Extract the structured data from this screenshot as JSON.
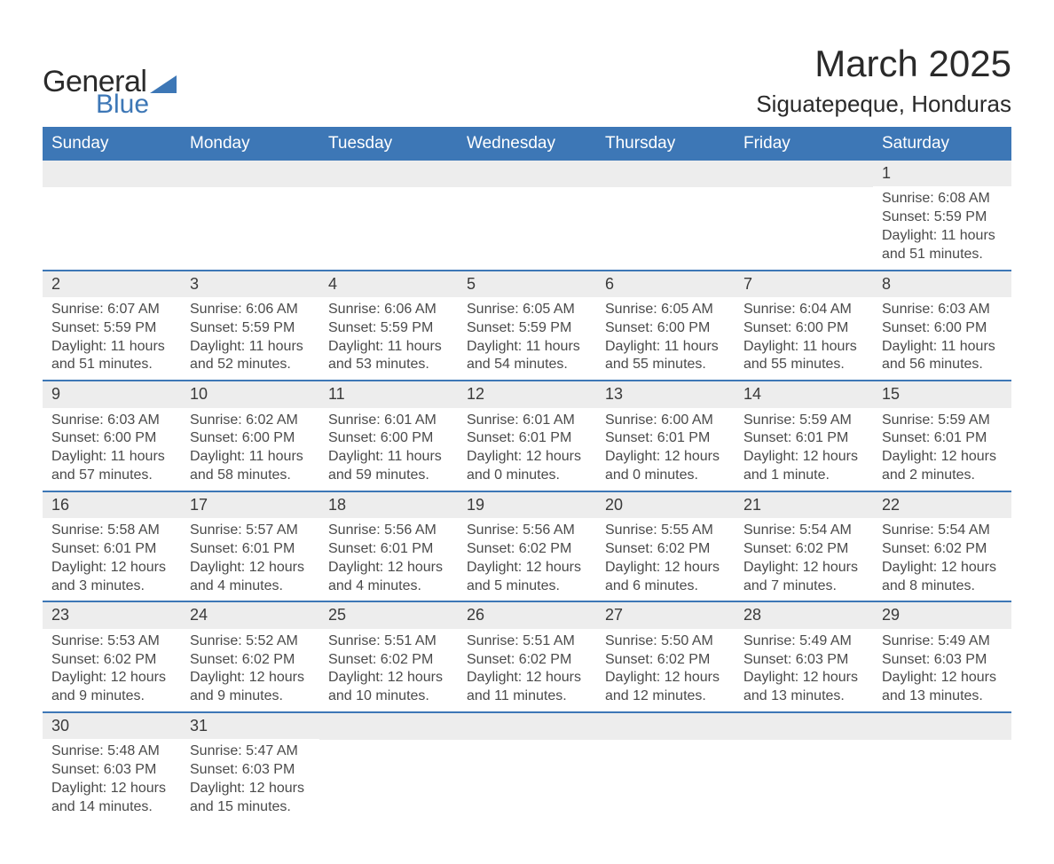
{
  "logo": {
    "word1": "General",
    "word2": "Blue",
    "tri_color": "#3d77b6"
  },
  "title": {
    "month": "March 2025",
    "location": "Siguatepeque, Honduras"
  },
  "colors": {
    "header_bg": "#3d77b6",
    "header_fg": "#ffffff",
    "daynum_bg": "#ededed",
    "border": "#3d77b6",
    "text": "#4a4a4a"
  },
  "weekdays": [
    "Sunday",
    "Monday",
    "Tuesday",
    "Wednesday",
    "Thursday",
    "Friday",
    "Saturday"
  ],
  "weeks": [
    [
      null,
      null,
      null,
      null,
      null,
      null,
      {
        "n": "1",
        "sunrise": "Sunrise: 6:08 AM",
        "sunset": "Sunset: 5:59 PM",
        "daylight": "Daylight: 11 hours and 51 minutes."
      }
    ],
    [
      {
        "n": "2",
        "sunrise": "Sunrise: 6:07 AM",
        "sunset": "Sunset: 5:59 PM",
        "daylight": "Daylight: 11 hours and 51 minutes."
      },
      {
        "n": "3",
        "sunrise": "Sunrise: 6:06 AM",
        "sunset": "Sunset: 5:59 PM",
        "daylight": "Daylight: 11 hours and 52 minutes."
      },
      {
        "n": "4",
        "sunrise": "Sunrise: 6:06 AM",
        "sunset": "Sunset: 5:59 PM",
        "daylight": "Daylight: 11 hours and 53 minutes."
      },
      {
        "n": "5",
        "sunrise": "Sunrise: 6:05 AM",
        "sunset": "Sunset: 5:59 PM",
        "daylight": "Daylight: 11 hours and 54 minutes."
      },
      {
        "n": "6",
        "sunrise": "Sunrise: 6:05 AM",
        "sunset": "Sunset: 6:00 PM",
        "daylight": "Daylight: 11 hours and 55 minutes."
      },
      {
        "n": "7",
        "sunrise": "Sunrise: 6:04 AM",
        "sunset": "Sunset: 6:00 PM",
        "daylight": "Daylight: 11 hours and 55 minutes."
      },
      {
        "n": "8",
        "sunrise": "Sunrise: 6:03 AM",
        "sunset": "Sunset: 6:00 PM",
        "daylight": "Daylight: 11 hours and 56 minutes."
      }
    ],
    [
      {
        "n": "9",
        "sunrise": "Sunrise: 6:03 AM",
        "sunset": "Sunset: 6:00 PM",
        "daylight": "Daylight: 11 hours and 57 minutes."
      },
      {
        "n": "10",
        "sunrise": "Sunrise: 6:02 AM",
        "sunset": "Sunset: 6:00 PM",
        "daylight": "Daylight: 11 hours and 58 minutes."
      },
      {
        "n": "11",
        "sunrise": "Sunrise: 6:01 AM",
        "sunset": "Sunset: 6:00 PM",
        "daylight": "Daylight: 11 hours and 59 minutes."
      },
      {
        "n": "12",
        "sunrise": "Sunrise: 6:01 AM",
        "sunset": "Sunset: 6:01 PM",
        "daylight": "Daylight: 12 hours and 0 minutes."
      },
      {
        "n": "13",
        "sunrise": "Sunrise: 6:00 AM",
        "sunset": "Sunset: 6:01 PM",
        "daylight": "Daylight: 12 hours and 0 minutes."
      },
      {
        "n": "14",
        "sunrise": "Sunrise: 5:59 AM",
        "sunset": "Sunset: 6:01 PM",
        "daylight": "Daylight: 12 hours and 1 minute."
      },
      {
        "n": "15",
        "sunrise": "Sunrise: 5:59 AM",
        "sunset": "Sunset: 6:01 PM",
        "daylight": "Daylight: 12 hours and 2 minutes."
      }
    ],
    [
      {
        "n": "16",
        "sunrise": "Sunrise: 5:58 AM",
        "sunset": "Sunset: 6:01 PM",
        "daylight": "Daylight: 12 hours and 3 minutes."
      },
      {
        "n": "17",
        "sunrise": "Sunrise: 5:57 AM",
        "sunset": "Sunset: 6:01 PM",
        "daylight": "Daylight: 12 hours and 4 minutes."
      },
      {
        "n": "18",
        "sunrise": "Sunrise: 5:56 AM",
        "sunset": "Sunset: 6:01 PM",
        "daylight": "Daylight: 12 hours and 4 minutes."
      },
      {
        "n": "19",
        "sunrise": "Sunrise: 5:56 AM",
        "sunset": "Sunset: 6:02 PM",
        "daylight": "Daylight: 12 hours and 5 minutes."
      },
      {
        "n": "20",
        "sunrise": "Sunrise: 5:55 AM",
        "sunset": "Sunset: 6:02 PM",
        "daylight": "Daylight: 12 hours and 6 minutes."
      },
      {
        "n": "21",
        "sunrise": "Sunrise: 5:54 AM",
        "sunset": "Sunset: 6:02 PM",
        "daylight": "Daylight: 12 hours and 7 minutes."
      },
      {
        "n": "22",
        "sunrise": "Sunrise: 5:54 AM",
        "sunset": "Sunset: 6:02 PM",
        "daylight": "Daylight: 12 hours and 8 minutes."
      }
    ],
    [
      {
        "n": "23",
        "sunrise": "Sunrise: 5:53 AM",
        "sunset": "Sunset: 6:02 PM",
        "daylight": "Daylight: 12 hours and 9 minutes."
      },
      {
        "n": "24",
        "sunrise": "Sunrise: 5:52 AM",
        "sunset": "Sunset: 6:02 PM",
        "daylight": "Daylight: 12 hours and 9 minutes."
      },
      {
        "n": "25",
        "sunrise": "Sunrise: 5:51 AM",
        "sunset": "Sunset: 6:02 PM",
        "daylight": "Daylight: 12 hours and 10 minutes."
      },
      {
        "n": "26",
        "sunrise": "Sunrise: 5:51 AM",
        "sunset": "Sunset: 6:02 PM",
        "daylight": "Daylight: 12 hours and 11 minutes."
      },
      {
        "n": "27",
        "sunrise": "Sunrise: 5:50 AM",
        "sunset": "Sunset: 6:02 PM",
        "daylight": "Daylight: 12 hours and 12 minutes."
      },
      {
        "n": "28",
        "sunrise": "Sunrise: 5:49 AM",
        "sunset": "Sunset: 6:03 PM",
        "daylight": "Daylight: 12 hours and 13 minutes."
      },
      {
        "n": "29",
        "sunrise": "Sunrise: 5:49 AM",
        "sunset": "Sunset: 6:03 PM",
        "daylight": "Daylight: 12 hours and 13 minutes."
      }
    ],
    [
      {
        "n": "30",
        "sunrise": "Sunrise: 5:48 AM",
        "sunset": "Sunset: 6:03 PM",
        "daylight": "Daylight: 12 hours and 14 minutes."
      },
      {
        "n": "31",
        "sunrise": "Sunrise: 5:47 AM",
        "sunset": "Sunset: 6:03 PM",
        "daylight": "Daylight: 12 hours and 15 minutes."
      },
      null,
      null,
      null,
      null,
      null
    ]
  ]
}
